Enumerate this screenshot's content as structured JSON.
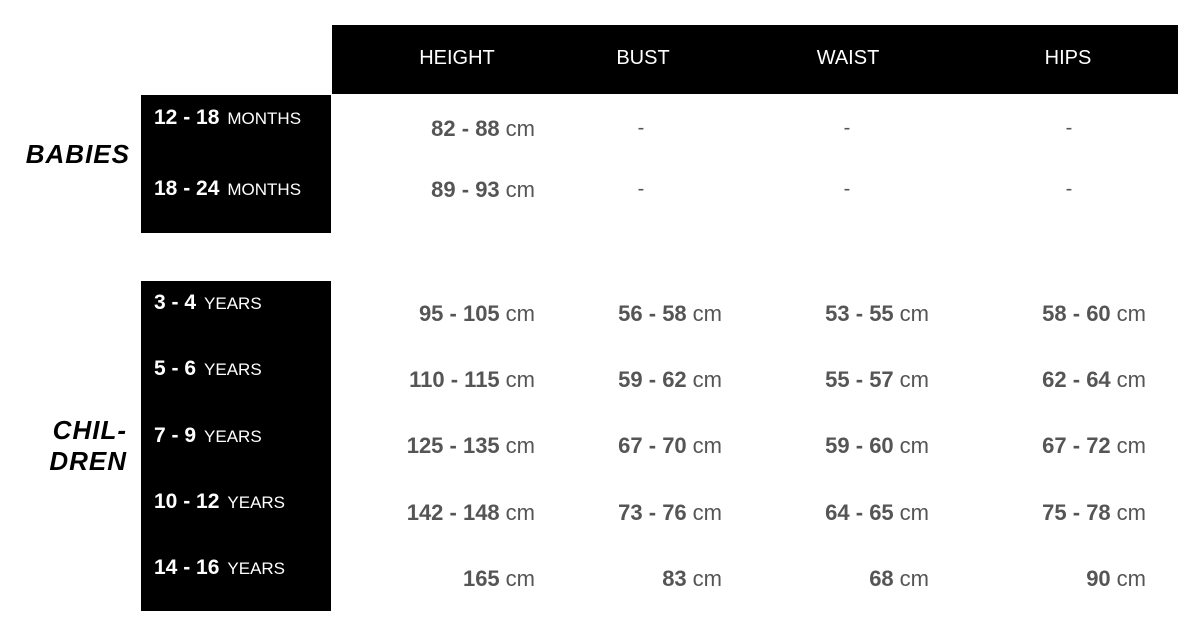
{
  "columns": [
    "HEIGHT",
    "BUST",
    "WAIST",
    "HIPS"
  ],
  "groups": [
    {
      "name": "BABIES",
      "rows": [
        {
          "range": "12 - 18",
          "unit": "MONTHS",
          "values": [
            "82 - 88",
            "-",
            "-",
            "-"
          ]
        },
        {
          "range": "18 - 24",
          "unit": "MONTHS",
          "values": [
            "89 - 93",
            "-",
            "-",
            "-"
          ]
        }
      ]
    },
    {
      "name_lines": [
        "CHIL-",
        "DREN"
      ],
      "rows": [
        {
          "range": "3 - 4",
          "unit": "YEARS",
          "values": [
            "95 - 105",
            "56 - 58",
            "53 - 55",
            "58 - 60"
          ]
        },
        {
          "range": "5 - 6",
          "unit": "YEARS",
          "values": [
            "110 - 115",
            "59 - 62",
            "55 - 57",
            "62 - 64"
          ]
        },
        {
          "range": "7 - 9",
          "unit": "YEARS",
          "values": [
            "125 - 135",
            "67 - 70",
            "59 - 60",
            "67 - 72"
          ]
        },
        {
          "range": "10 - 12",
          "unit": "YEARS",
          "values": [
            "142 - 148",
            "73 - 76",
            "64 - 65",
            "75 - 78"
          ]
        },
        {
          "range": "14 - 16",
          "unit": "YEARS",
          "values": [
            "165",
            "83",
            "68",
            "90"
          ]
        }
      ]
    }
  ],
  "value_unit": "cm",
  "colors": {
    "header_bg": "#000000",
    "value_text": "#555555"
  }
}
